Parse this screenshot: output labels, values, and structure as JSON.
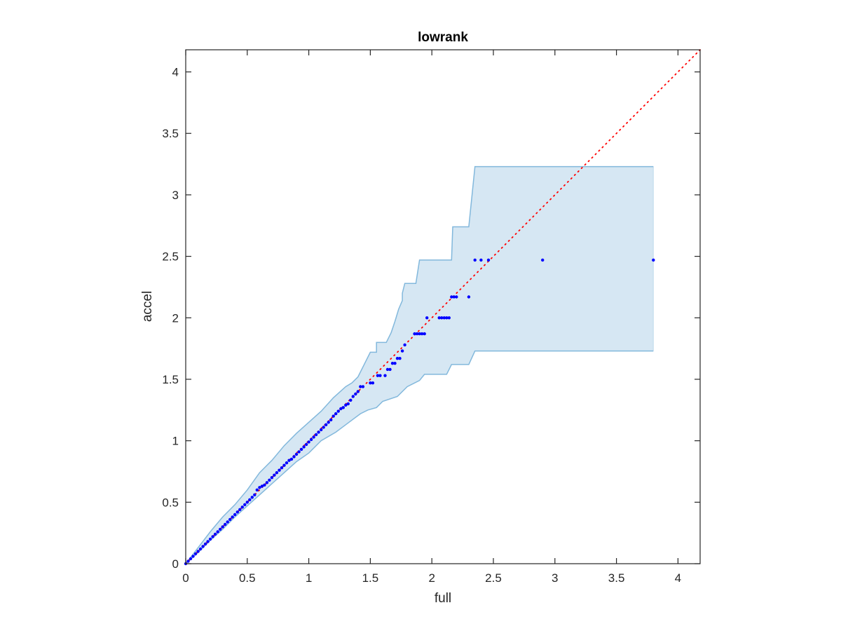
{
  "chart_data": {
    "type": "scatter",
    "title": "lowrank",
    "xlabel": "full",
    "ylabel": "accel",
    "xlim": [
      0,
      4.18
    ],
    "ylim": [
      0,
      4.18
    ],
    "xticks": [
      "0",
      "0.5",
      "1",
      "1.5",
      "2",
      "2.5",
      "3",
      "3.5",
      "4"
    ],
    "yticks": [
      "0",
      "0.5",
      "1",
      "1.5",
      "2",
      "2.5",
      "3",
      "3.5",
      "4"
    ],
    "grid": false,
    "legend": "none",
    "colors": {
      "points": "#0000ff",
      "diagonal": "#ff0000",
      "band_fill": "#d6e7f3",
      "band_edge": "#82b8dc",
      "axes": "#262626"
    },
    "diagonal": {
      "x": [
        0,
        4.18
      ],
      "y": [
        0,
        4.18
      ],
      "style": "dotted"
    },
    "band": {
      "upper": [
        [
          0,
          0
        ],
        [
          0.1,
          0.13
        ],
        [
          0.2,
          0.26
        ],
        [
          0.3,
          0.38
        ],
        [
          0.4,
          0.48
        ],
        [
          0.5,
          0.6
        ],
        [
          0.6,
          0.74
        ],
        [
          0.7,
          0.84
        ],
        [
          0.8,
          0.96
        ],
        [
          0.9,
          1.06
        ],
        [
          1.0,
          1.15
        ],
        [
          1.1,
          1.24
        ],
        [
          1.2,
          1.35
        ],
        [
          1.3,
          1.44
        ],
        [
          1.35,
          1.47
        ],
        [
          1.4,
          1.52
        ],
        [
          1.45,
          1.62
        ],
        [
          1.5,
          1.72
        ],
        [
          1.55,
          1.72
        ],
        [
          1.55,
          1.8
        ],
        [
          1.63,
          1.8
        ],
        [
          1.67,
          1.88
        ],
        [
          1.7,
          1.97
        ],
        [
          1.73,
          2.07
        ],
        [
          1.76,
          2.14
        ],
        [
          1.76,
          2.2
        ],
        [
          1.78,
          2.28
        ],
        [
          1.87,
          2.28
        ],
        [
          1.9,
          2.47
        ],
        [
          2.16,
          2.47
        ],
        [
          2.17,
          2.74
        ],
        [
          2.3,
          2.74
        ],
        [
          2.35,
          3.23
        ],
        [
          3.8,
          3.23
        ]
      ],
      "lower": [
        [
          3.8,
          1.73
        ],
        [
          2.35,
          1.73
        ],
        [
          2.3,
          1.62
        ],
        [
          2.16,
          1.62
        ],
        [
          2.12,
          1.54
        ],
        [
          1.94,
          1.54
        ],
        [
          1.9,
          1.49
        ],
        [
          1.8,
          1.44
        ],
        [
          1.72,
          1.36
        ],
        [
          1.6,
          1.32
        ],
        [
          1.55,
          1.27
        ],
        [
          1.48,
          1.25
        ],
        [
          1.42,
          1.22
        ],
        [
          1.3,
          1.13
        ],
        [
          1.22,
          1.07
        ],
        [
          1.1,
          1.0
        ],
        [
          1.0,
          0.9
        ],
        [
          0.9,
          0.83
        ],
        [
          0.8,
          0.74
        ],
        [
          0.7,
          0.65
        ],
        [
          0.6,
          0.56
        ],
        [
          0.5,
          0.47
        ],
        [
          0.4,
          0.38
        ],
        [
          0.3,
          0.28
        ],
        [
          0.2,
          0.19
        ],
        [
          0.1,
          0.09
        ],
        [
          0,
          0
        ]
      ]
    },
    "points_x": [
      0.0,
      0.02,
      0.04,
      0.06,
      0.08,
      0.1,
      0.12,
      0.14,
      0.16,
      0.18,
      0.2,
      0.22,
      0.24,
      0.26,
      0.28,
      0.3,
      0.32,
      0.34,
      0.36,
      0.38,
      0.4,
      0.42,
      0.44,
      0.46,
      0.48,
      0.5,
      0.52,
      0.54,
      0.56,
      0.58,
      0.6,
      0.62,
      0.64,
      0.66,
      0.68,
      0.7,
      0.72,
      0.74,
      0.76,
      0.78,
      0.8,
      0.82,
      0.84,
      0.86,
      0.88,
      0.9,
      0.92,
      0.94,
      0.96,
      0.98,
      1.0,
      1.02,
      1.04,
      1.06,
      1.08,
      1.1,
      1.12,
      1.14,
      1.16,
      1.18,
      1.2,
      1.22,
      1.24,
      1.26,
      1.28,
      1.3,
      1.32,
      1.34,
      1.36,
      1.38,
      1.4,
      1.42,
      1.44,
      1.5,
      1.52,
      1.56,
      1.58,
      1.62,
      1.64,
      1.66,
      1.68,
      1.7,
      1.72,
      1.74,
      1.76,
      1.78,
      1.86,
      1.88,
      1.9,
      1.92,
      1.94,
      1.96,
      2.06,
      2.08,
      2.1,
      2.12,
      2.14,
      2.16,
      2.18,
      2.2,
      2.3,
      2.35,
      2.4,
      2.46,
      2.9,
      3.8
    ],
    "points_y": [
      0.0,
      0.02,
      0.04,
      0.06,
      0.08,
      0.1,
      0.12,
      0.14,
      0.16,
      0.18,
      0.2,
      0.22,
      0.24,
      0.26,
      0.28,
      0.3,
      0.32,
      0.34,
      0.36,
      0.38,
      0.4,
      0.42,
      0.44,
      0.46,
      0.48,
      0.5,
      0.52,
      0.54,
      0.56,
      0.6,
      0.62,
      0.63,
      0.64,
      0.66,
      0.68,
      0.7,
      0.72,
      0.74,
      0.76,
      0.78,
      0.8,
      0.82,
      0.84,
      0.85,
      0.87,
      0.89,
      0.91,
      0.93,
      0.95,
      0.97,
      0.99,
      1.01,
      1.03,
      1.05,
      1.07,
      1.09,
      1.11,
      1.13,
      1.15,
      1.17,
      1.2,
      1.22,
      1.24,
      1.26,
      1.27,
      1.29,
      1.3,
      1.33,
      1.36,
      1.38,
      1.4,
      1.44,
      1.44,
      1.47,
      1.47,
      1.53,
      1.53,
      1.53,
      1.58,
      1.58,
      1.63,
      1.63,
      1.67,
      1.67,
      1.73,
      1.78,
      1.87,
      1.87,
      1.87,
      1.87,
      1.87,
      2.0,
      2.0,
      2.0,
      2.0,
      2.0,
      2.0,
      2.17,
      2.17,
      2.17,
      2.17,
      2.47,
      2.47,
      2.47,
      2.47,
      2.47
    ]
  }
}
